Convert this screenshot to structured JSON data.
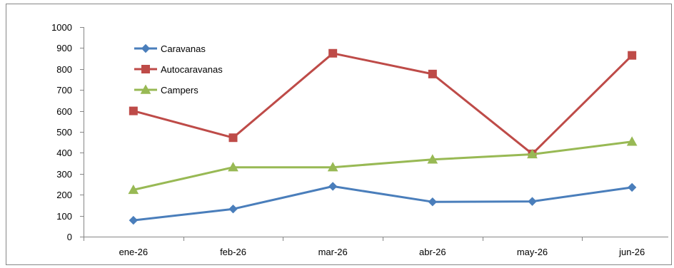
{
  "chart_data": {
    "type": "line",
    "title": "",
    "xlabel": "",
    "ylabel": "",
    "categories": [
      "ene-26",
      "feb-26",
      "mar-26",
      "abr-26",
      "may-26",
      "jun-26"
    ],
    "ylim": [
      0,
      1000
    ],
    "yticks": [
      "0",
      "100",
      "200",
      "300",
      "400",
      "500",
      "600",
      "700",
      "800",
      "900",
      "1000"
    ],
    "grid": false,
    "legend_position": "top-left",
    "series": [
      {
        "name": "Caravanas",
        "values": [
          78,
          132,
          240,
          166,
          168,
          235
        ],
        "color": "#4A7EBB",
        "marker": "diamond"
      },
      {
        "name": "Autocaravanas",
        "values": [
          600,
          472,
          875,
          776,
          395,
          865
        ],
        "color": "#BE4B48",
        "marker": "square"
      },
      {
        "name": "Campers",
        "values": [
          223,
          331,
          331,
          368,
          393,
          453
        ],
        "color": "#98B954",
        "marker": "triangle"
      }
    ]
  }
}
